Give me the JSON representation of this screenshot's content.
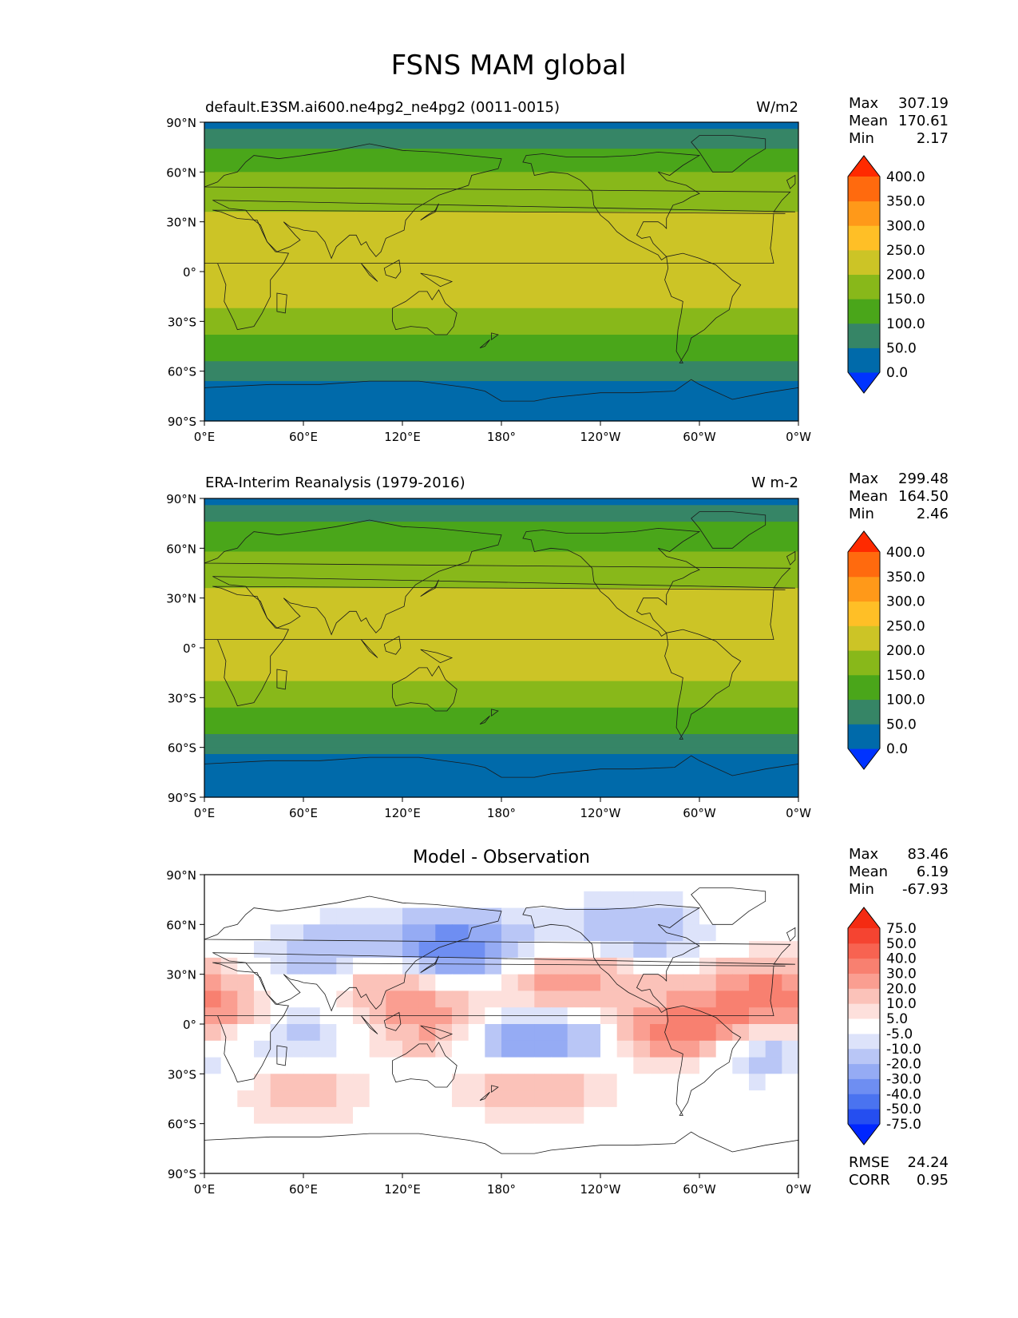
{
  "figure_title": "FSNS MAM global",
  "lat_ticks": [
    "90°N",
    "60°N",
    "30°N",
    "0°",
    "30°S",
    "60°S",
    "90°S"
  ],
  "lon_ticks": [
    "0°E",
    "60°E",
    "120°E",
    "180°",
    "120°W",
    "60°W",
    "0°W"
  ],
  "colors": {
    "sequential": [
      "#0033ff",
      "#006aaa",
      "#368566",
      "#4aa61a",
      "#88b81a",
      "#ccc426",
      "#ffbf26",
      "#ff9919",
      "#ff6a0e",
      "#ff2a00"
    ],
    "diverging": [
      "#0026ff",
      "#254ef0",
      "#4a73f0",
      "#6e8ef2",
      "#95abf4",
      "#b9c6f6",
      "#dde3fa",
      "#ffffff",
      "#fde0dc",
      "#fbc2b9",
      "#fa9e91",
      "#f88070",
      "#f76351",
      "#f54431",
      "#f42b12"
    ]
  },
  "chart_data": [
    {
      "type": "heatmap",
      "title_left": "default.E3SM.ai600.ne4pg2_ne4pg2 (0011-0015)",
      "title_right": "W/m2",
      "stats": {
        "labels": [
          "Max",
          "Mean",
          "Min"
        ],
        "values": [
          "307.19",
          "170.61",
          "2.17"
        ]
      },
      "colorbar": {
        "levels": [
          "400.0",
          "350.0",
          "300.0",
          "250.0",
          "200.0",
          "150.0",
          "100.0",
          "50.0",
          "0.0"
        ],
        "palette": "sequential"
      },
      "xlim": [
        0,
        360
      ],
      "ylim": [
        -90,
        90
      ],
      "zonal_bands": {
        "lat": [
          90,
          80,
          72,
          65,
          58,
          50,
          42,
          35,
          25,
          15,
          5,
          0,
          -5,
          -15,
          -25,
          -35,
          -45,
          -55,
          -62,
          -70,
          -90
        ],
        "value": [
          25,
          80,
          110,
          140,
          155,
          170,
          185,
          200,
          215,
          225,
          230,
          235,
          230,
          215,
          190,
          160,
          125,
          95,
          60,
          35,
          20
        ]
      }
    },
    {
      "type": "heatmap",
      "title_left": "ERA-Interim Reanalysis (1979-2016)",
      "title_right": "W m-2",
      "stats": {
        "labels": [
          "Max",
          "Mean",
          "Min"
        ],
        "values": [
          "299.48",
          "164.50",
          "2.46"
        ]
      },
      "colorbar": {
        "levels": [
          "400.0",
          "350.0",
          "300.0",
          "250.0",
          "200.0",
          "150.0",
          "100.0",
          "50.0",
          "0.0"
        ],
        "palette": "sequential"
      },
      "xlim": [
        0,
        360
      ],
      "ylim": [
        -90,
        90
      ],
      "zonal_bands": {
        "lat": [
          90,
          80,
          72,
          65,
          58,
          50,
          42,
          35,
          25,
          15,
          5,
          0,
          -5,
          -15,
          -25,
          -35,
          -45,
          -55,
          -62,
          -70,
          -90
        ],
        "value": [
          30,
          85,
          115,
          140,
          150,
          165,
          180,
          200,
          215,
          230,
          240,
          235,
          225,
          210,
          185,
          155,
          120,
          90,
          55,
          30,
          20
        ]
      }
    },
    {
      "type": "heatmap",
      "title_center": "Model - Observation",
      "stats": {
        "labels": [
          "Max",
          "Mean",
          "Min"
        ],
        "values": [
          "83.46",
          "6.19",
          "-67.93"
        ]
      },
      "colorbar": {
        "levels": [
          "75.0",
          "50.0",
          "40.0",
          "30.0",
          "20.0",
          "10.0",
          "5.0",
          "-5.0",
          "-10.0",
          "-20.0",
          "-30.0",
          "-40.0",
          "-50.0",
          "-75.0"
        ],
        "palette": "diverging"
      },
      "extra_stats": {
        "labels": [
          "RMSE",
          "CORR"
        ],
        "values": [
          "24.24",
          "0.95"
        ]
      },
      "xlim": [
        0,
        360
      ],
      "ylim": [
        -90,
        90
      ],
      "anomalies": [
        {
          "lon": 150,
          "lat": 45,
          "value": -45
        },
        {
          "lon": 200,
          "lat": -10,
          "value": -40
        },
        {
          "lon": 300,
          "lat": -5,
          "value": 55
        },
        {
          "lon": 330,
          "lat": -10,
          "value": -45
        },
        {
          "lon": 10,
          "lat": 0,
          "value": 35
        },
        {
          "lon": 110,
          "lat": 30,
          "value": 30
        },
        {
          "lon": 80,
          "lat": 40,
          "value": -25
        },
        {
          "lon": 220,
          "lat": 25,
          "value": 30
        },
        {
          "lon": 260,
          "lat": 55,
          "value": -20
        },
        {
          "lon": 45,
          "lat": -5,
          "value": -25
        },
        {
          "lon": 140,
          "lat": 0,
          "value": 25
        },
        {
          "lon": 340,
          "lat": 20,
          "value": 30
        },
        {
          "lon": 200,
          "lat": -35,
          "value": 22
        },
        {
          "lon": 60,
          "lat": -40,
          "value": 15
        }
      ]
    }
  ]
}
